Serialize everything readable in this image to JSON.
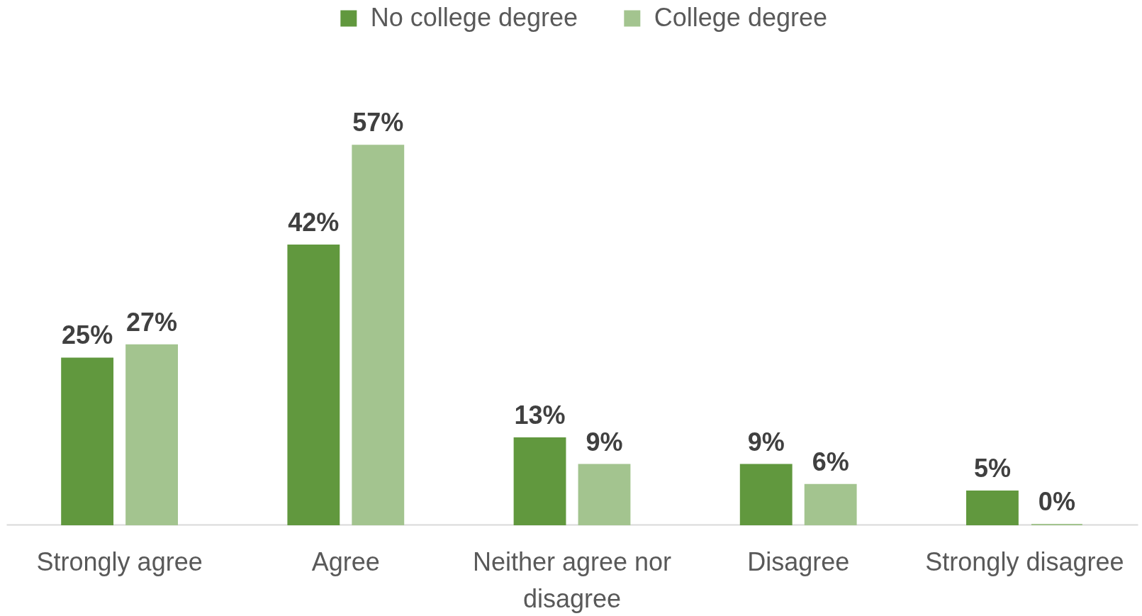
{
  "chart_data": {
    "type": "bar",
    "categories": [
      "Strongly agree",
      "Agree",
      "Neither agree nor disagree",
      "Disagree",
      "Strongly disagree"
    ],
    "series": [
      {
        "name": "No college degree",
        "color": "#61983e",
        "values": [
          25,
          42,
          13,
          9,
          5
        ],
        "value_labels": [
          "25%",
          "42%",
          "13%",
          "9%",
          "5%"
        ]
      },
      {
        "name": "College degree",
        "color": "#a3c48f",
        "values": [
          27,
          57,
          9,
          6,
          0
        ],
        "value_labels": [
          "27%",
          "57%",
          "9%",
          "6%",
          "0%"
        ]
      }
    ],
    "legend": "top"
  }
}
